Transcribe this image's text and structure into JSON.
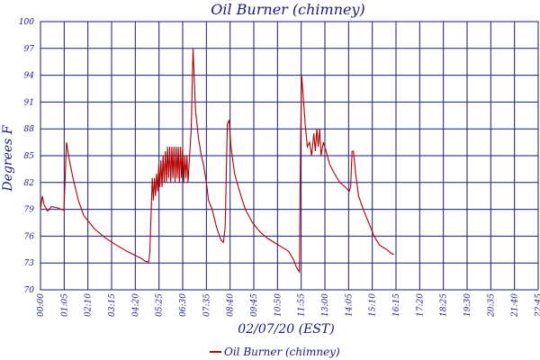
{
  "chart_data": {
    "type": "line",
    "title": "Oil Burner (chimney)",
    "xlabel": "02/07/20 (EST)",
    "ylabel": "Degrees F",
    "x_unit": "time of day (HH:MM)",
    "x_range_minutes": [
      0,
      1380
    ],
    "y_plot_range": [
      70,
      100
    ],
    "ytick_labels": [
      "100",
      "97",
      "94",
      "91",
      "88",
      "85",
      "82",
      "79",
      "76",
      "73",
      "70"
    ],
    "xtick_labels": [
      "00:00",
      "01:05",
      "02:10",
      "03:15",
      "04:20",
      "05:25",
      "06:30",
      "07:35",
      "08:40",
      "09:45",
      "10:50",
      "11:55",
      "13:00",
      "14:05",
      "15:10",
      "16:15",
      "17:20",
      "18:25",
      "19:30",
      "20:35",
      "21:40",
      "22:45"
    ],
    "grid": true,
    "legend": {
      "position": "bottom-center"
    },
    "colors": {
      "series": "#b30000",
      "grid": "#1a1a7a",
      "text": "#1a1a7a"
    },
    "series": [
      {
        "name": "Oil Burner (chimney)",
        "points": [
          [
            0,
            79
          ],
          [
            5,
            80.5
          ],
          [
            10,
            79.5
          ],
          [
            20,
            78.8
          ],
          [
            30,
            79.3
          ],
          [
            45,
            79.2
          ],
          [
            65,
            78.9
          ],
          [
            68,
            82
          ],
          [
            72,
            86.5
          ],
          [
            80,
            84.5
          ],
          [
            90,
            82.5
          ],
          [
            105,
            80
          ],
          [
            120,
            78.3
          ],
          [
            150,
            76.8
          ],
          [
            180,
            75.8
          ],
          [
            210,
            75
          ],
          [
            240,
            74.3
          ],
          [
            265,
            73.8
          ],
          [
            280,
            73.5
          ],
          [
            290,
            73.2
          ],
          [
            300,
            73.1
          ],
          [
            303,
            74
          ],
          [
            310,
            82.5
          ],
          [
            313,
            80
          ],
          [
            316,
            82.5
          ],
          [
            319,
            80.5
          ],
          [
            322,
            83
          ],
          [
            325,
            81
          ],
          [
            328,
            84
          ],
          [
            331,
            81.5
          ],
          [
            334,
            84.5
          ],
          [
            337,
            81.5
          ],
          [
            340,
            85
          ],
          [
            343,
            82
          ],
          [
            346,
            85.5
          ],
          [
            349,
            82
          ],
          [
            352,
            86
          ],
          [
            355,
            82.5
          ],
          [
            358,
            86
          ],
          [
            361,
            82
          ],
          [
            364,
            86
          ],
          [
            367,
            82.5
          ],
          [
            370,
            86
          ],
          [
            373,
            82
          ],
          [
            376,
            86
          ],
          [
            379,
            82.5
          ],
          [
            382,
            86
          ],
          [
            385,
            82
          ],
          [
            388,
            86
          ],
          [
            391,
            82.5
          ],
          [
            394,
            86
          ],
          [
            397,
            82
          ],
          [
            400,
            85
          ],
          [
            403,
            82.5
          ],
          [
            406,
            85
          ],
          [
            409,
            82
          ],
          [
            418,
            88
          ],
          [
            423,
            97
          ],
          [
            430,
            90
          ],
          [
            438,
            87
          ],
          [
            446,
            85
          ],
          [
            452,
            84
          ],
          [
            460,
            82
          ],
          [
            466,
            80
          ],
          [
            476,
            79
          ],
          [
            488,
            77
          ],
          [
            500,
            75.6
          ],
          [
            507,
            75.3
          ],
          [
            512,
            77
          ],
          [
            518,
            88.5
          ],
          [
            523,
            89
          ],
          [
            528,
            86
          ],
          [
            538,
            83
          ],
          [
            552,
            81
          ],
          [
            568,
            79
          ],
          [
            588,
            77.5
          ],
          [
            608,
            76.5
          ],
          [
            628,
            75.8
          ],
          [
            648,
            75.3
          ],
          [
            668,
            74.8
          ],
          [
            688,
            74.3
          ],
          [
            700,
            73.5
          ],
          [
            710,
            72.5
          ],
          [
            718,
            72
          ],
          [
            721,
            86
          ],
          [
            724,
            94
          ],
          [
            728,
            92
          ],
          [
            734,
            88.5
          ],
          [
            740,
            86
          ],
          [
            746,
            86.5
          ],
          [
            752,
            85
          ],
          [
            758,
            87.5
          ],
          [
            762,
            85.5
          ],
          [
            766,
            88
          ],
          [
            770,
            86
          ],
          [
            774,
            88
          ],
          [
            778,
            85
          ],
          [
            784,
            86.5
          ],
          [
            792,
            85.5
          ],
          [
            802,
            84
          ],
          [
            815,
            83
          ],
          [
            830,
            82
          ],
          [
            845,
            81.5
          ],
          [
            856,
            81
          ],
          [
            860,
            81.5
          ],
          [
            864,
            85.5
          ],
          [
            868,
            85.5
          ],
          [
            874,
            83
          ],
          [
            882,
            80.5
          ],
          [
            895,
            79
          ],
          [
            910,
            77.5
          ],
          [
            925,
            76
          ],
          [
            940,
            75
          ],
          [
            960,
            74.5
          ],
          [
            975,
            74
          ],
          [
            980,
            74
          ]
        ]
      }
    ]
  }
}
